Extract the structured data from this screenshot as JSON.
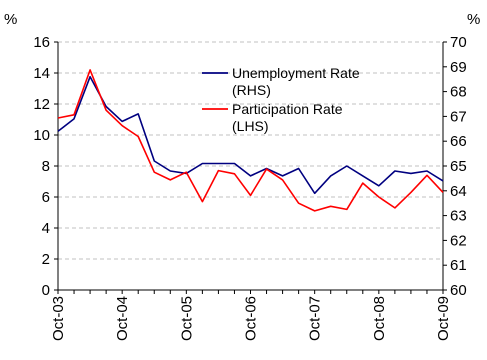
{
  "chart_data": {
    "type": "line",
    "title": "",
    "left_axis": {
      "unit_label": "%",
      "ylim": [
        0,
        16
      ],
      "ticks": [
        0,
        2,
        4,
        6,
        8,
        10,
        12,
        14,
        16
      ],
      "tick_labels": [
        "0",
        "2",
        "4",
        "6",
        "8",
        "10",
        "12",
        "14",
        "16"
      ]
    },
    "right_axis": {
      "unit_label": "%",
      "ylim": [
        60,
        70
      ],
      "ticks": [
        60,
        61,
        62,
        63,
        64,
        65,
        66,
        67,
        68,
        69,
        70
      ],
      "tick_labels": [
        "60",
        "61",
        "62",
        "63",
        "64",
        "65",
        "66",
        "67",
        "68",
        "69",
        "70"
      ]
    },
    "x_axis": {
      "tick_labels": [
        "Oct-03",
        "Oct-04",
        "Oct-05",
        "Oct-06",
        "Oct-07",
        "Oct-08",
        "Oct-09"
      ]
    },
    "grid": "horizontal-dashed",
    "legend": {
      "placement": "top-right"
    },
    "series": [
      {
        "name": "Unemployment Rate (RHS)",
        "legend_lines": [
          "Unemployment Rate",
          "(RHS)"
        ],
        "axis": "right",
        "color": "#000080",
        "values": [
          66.4,
          66.9,
          68.6,
          67.4,
          66.8,
          67.1,
          65.2,
          64.8,
          64.7,
          65.1,
          65.1,
          65.1,
          64.6,
          64.9,
          64.6,
          64.9,
          63.9,
          64.6,
          65.0,
          64.6,
          64.2,
          64.8,
          64.7,
          64.8,
          64.4
        ]
      },
      {
        "name": "Participation Rate (LHS)",
        "legend_lines": [
          "Participation Rate",
          "(LHS)"
        ],
        "axis": "left",
        "color": "#ff0000",
        "values": [
          11.1,
          11.3,
          14.2,
          11.6,
          10.6,
          9.9,
          7.6,
          7.1,
          7.6,
          5.7,
          7.7,
          7.5,
          6.1,
          7.8,
          7.1,
          5.6,
          5.1,
          5.4,
          5.2,
          6.9,
          6.0,
          5.3,
          6.3,
          7.4,
          6.3
        ]
      }
    ],
    "colors": {
      "gridline": "#c0c0c0",
      "axis": "#000000"
    }
  }
}
